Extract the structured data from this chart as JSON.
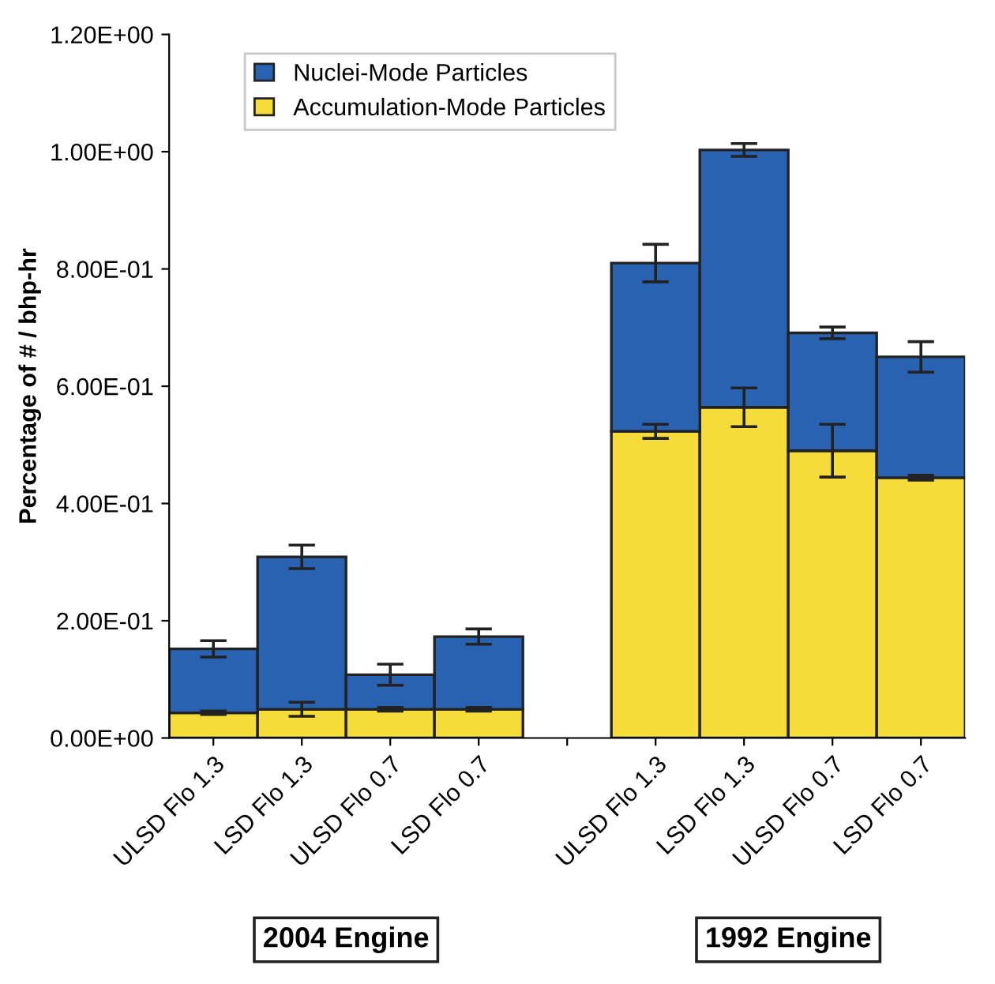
{
  "chart_data": {
    "type": "bar",
    "stacked": true,
    "ylabel": "Percentage of # / bhp-hr",
    "categories": [
      "ULSD Flo 1.3",
      "LSD Flo 1.3",
      "ULSD Flo 0.7",
      "LSD Flo 0.7",
      null,
      "ULSD Flo 1.3",
      "LSD Flo 1.3",
      "ULSD Flo 0.7",
      "LSD Flo 0.7"
    ],
    "series": [
      {
        "name": "Accumulation-Mode Particles",
        "color": "#f5dc3a",
        "values": [
          0.043,
          0.049,
          0.049,
          0.049,
          null,
          0.523,
          0.564,
          0.49,
          0.444
        ],
        "errors": [
          0.003,
          0.012,
          0.003,
          0.003,
          null,
          0.012,
          0.033,
          0.045,
          0.004
        ]
      },
      {
        "name": "Nuclei-Mode Particles",
        "color": "#2a62b2",
        "values": [
          0.109,
          0.26,
          0.059,
          0.124,
          null,
          0.287,
          0.439,
          0.201,
          0.206
        ],
        "errors": [
          0.014,
          0.02,
          0.018,
          0.013,
          null,
          0.032,
          0.011,
          0.01,
          0.026
        ]
      }
    ],
    "ylim": [
      0,
      1.2
    ],
    "yticks": [
      {
        "value": 0,
        "label": "0.00E+00"
      },
      {
        "value": 0.2,
        "label": "2.00E-01"
      },
      {
        "value": 0.4,
        "label": "4.00E-01"
      },
      {
        "value": 0.6,
        "label": "6.00E-01"
      },
      {
        "value": 0.8,
        "label": "8.00E-01"
      },
      {
        "value": 1.0,
        "label": "1.00E+00"
      },
      {
        "value": 1.2,
        "label": "1.20E+00"
      }
    ],
    "legend": "top left",
    "grid": false,
    "annotations": [
      "2004 Engine",
      "1992 Engine"
    ]
  }
}
